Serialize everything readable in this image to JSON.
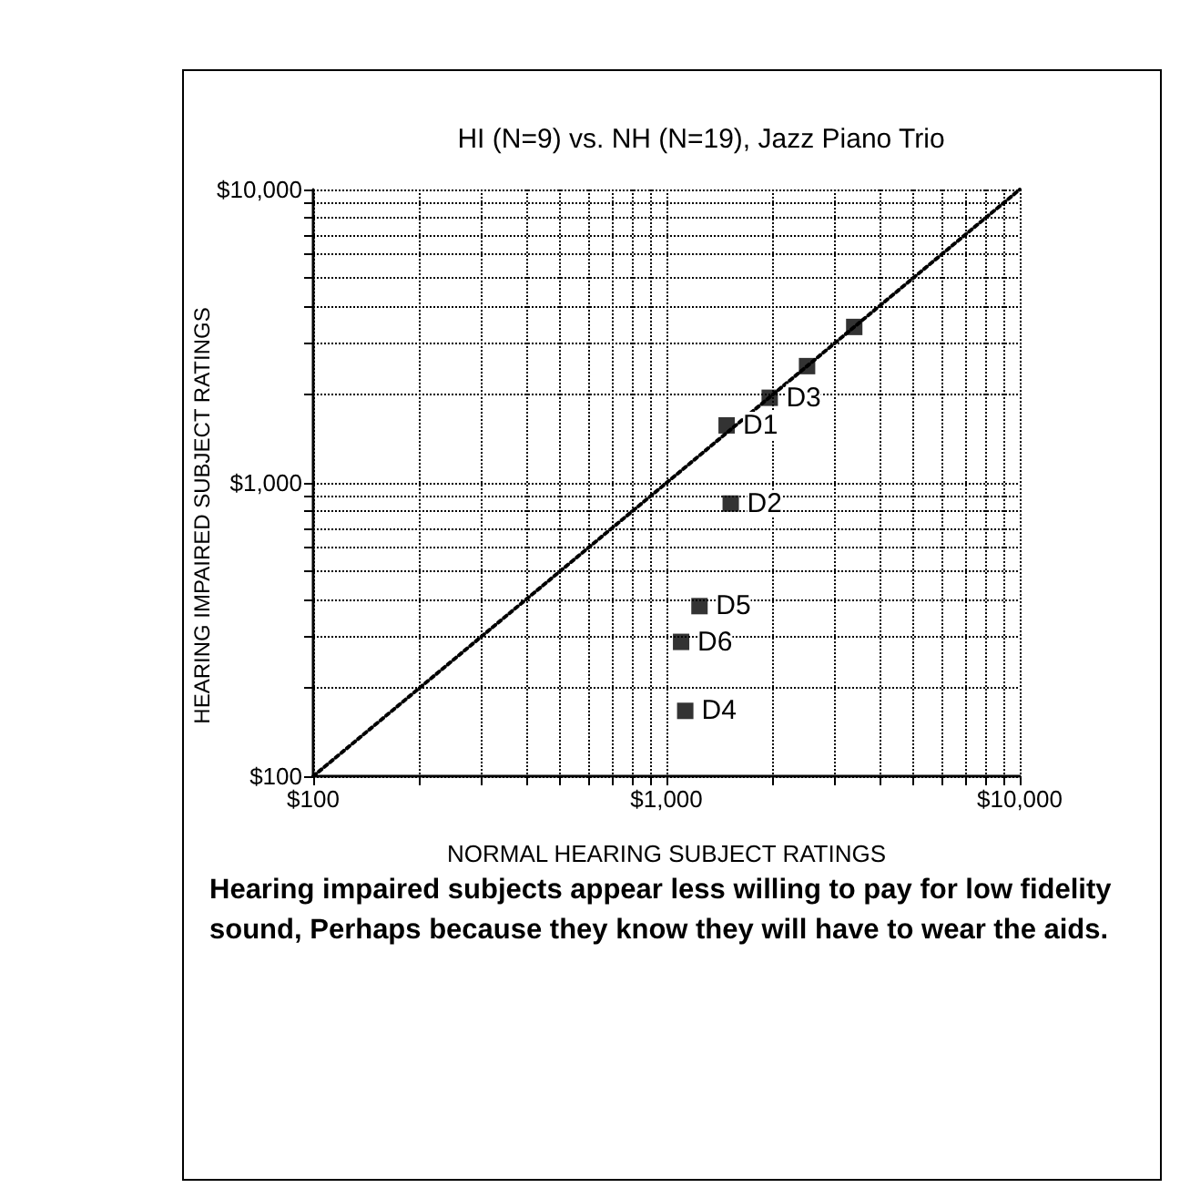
{
  "chart_data": {
    "type": "scatter",
    "title": "HI (N=9) vs. NH (N=19), Jazz Piano Trio",
    "xlabel": "NORMAL HEARING SUBJECT RATINGS",
    "ylabel": "HEARING IMPAIRED SUBJECT RATINGS",
    "log": "xy",
    "grid": true,
    "marker": "square",
    "xlim": [
      100,
      10000
    ],
    "ylim": [
      100,
      10000
    ],
    "xticks": [
      {
        "value": 100,
        "label": "$100"
      },
      {
        "value": 200,
        "label": null
      },
      {
        "value": 300,
        "label": null
      },
      {
        "value": 400,
        "label": null
      },
      {
        "value": 500,
        "label": null
      },
      {
        "value": 600,
        "label": null
      },
      {
        "value": 700,
        "label": null
      },
      {
        "value": 800,
        "label": null
      },
      {
        "value": 900,
        "label": null
      },
      {
        "value": 1000,
        "label": "$1,000"
      },
      {
        "value": 2000,
        "label": null
      },
      {
        "value": 3000,
        "label": null
      },
      {
        "value": 4000,
        "label": null
      },
      {
        "value": 5000,
        "label": null
      },
      {
        "value": 6000,
        "label": null
      },
      {
        "value": 7000,
        "label": null
      },
      {
        "value": 8000,
        "label": null
      },
      {
        "value": 9000,
        "label": null
      },
      {
        "value": 10000,
        "label": "$10,000"
      }
    ],
    "yticks": [
      {
        "value": 100,
        "label": "$100"
      },
      {
        "value": 200,
        "label": null
      },
      {
        "value": 300,
        "label": null
      },
      {
        "value": 400,
        "label": null
      },
      {
        "value": 500,
        "label": null
      },
      {
        "value": 600,
        "label": null
      },
      {
        "value": 700,
        "label": null
      },
      {
        "value": 800,
        "label": null
      },
      {
        "value": 900,
        "label": null
      },
      {
        "value": 1000,
        "label": "$1,000"
      },
      {
        "value": 2000,
        "label": null
      },
      {
        "value": 3000,
        "label": null
      },
      {
        "value": 4000,
        "label": null
      },
      {
        "value": 5000,
        "label": null
      },
      {
        "value": 6000,
        "label": null
      },
      {
        "value": 7000,
        "label": null
      },
      {
        "value": 8000,
        "label": null
      },
      {
        "value": 9000,
        "label": null
      },
      {
        "value": 10000,
        "label": "$10,000"
      }
    ],
    "series": [
      {
        "color": "#000000",
        "x": [
          1480,
          1520,
          1960,
          2500,
          3400,
          1240,
          1100,
          1130
        ],
        "values": [
          1570,
          850,
          1950,
          2500,
          3400,
          380,
          287,
          167
        ]
      },
      {
        "type": "line",
        "color": "#000000",
        "line_style": "dotted",
        "marker": "none",
        "x": [
          100,
          10000
        ],
        "values": [
          100,
          10000
        ]
      }
    ],
    "annotations": [
      {
        "text": "D1",
        "x": 1480,
        "y": 1570
      },
      {
        "text": "D2",
        "x": 1520,
        "y": 850
      },
      {
        "text": "D3",
        "x": 1960,
        "y": 1950
      },
      {
        "text": "D5",
        "x": 1240,
        "y": 380
      },
      {
        "text": "D6",
        "x": 1100,
        "y": 287
      },
      {
        "text": "D4",
        "x": 1130,
        "y": 167
      },
      "Hearing impaired subjects appear less willing to pay for low fidelity sound, Perhaps because they know they will have to wear the aids."
    ]
  }
}
